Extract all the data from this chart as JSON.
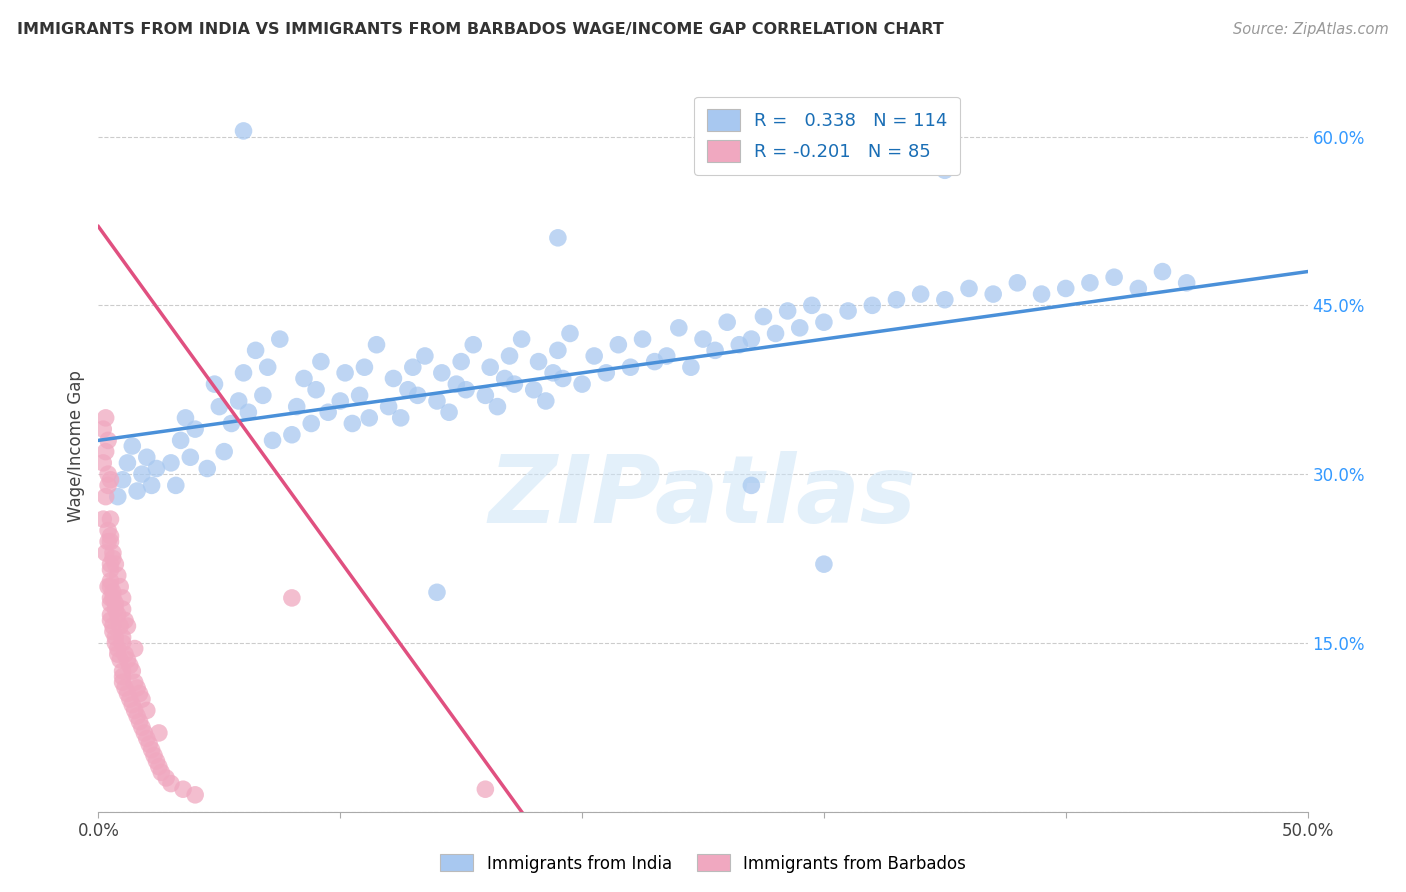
{
  "title": "IMMIGRANTS FROM INDIA VS IMMIGRANTS FROM BARBADOS WAGE/INCOME GAP CORRELATION CHART",
  "source": "Source: ZipAtlas.com",
  "ylabel": "Wage/Income Gap",
  "xlim": [
    0.0,
    0.5
  ],
  "ylim": [
    0.0,
    0.65
  ],
  "x_tick_positions": [
    0.0,
    0.1,
    0.2,
    0.3,
    0.4,
    0.5
  ],
  "x_tick_labels": [
    "0.0%",
    "",
    "",
    "",
    "",
    "50.0%"
  ],
  "y_tick_positions": [
    0.0,
    0.15,
    0.3,
    0.45,
    0.6
  ],
  "y_tick_labels_right": [
    "",
    "15.0%",
    "30.0%",
    "45.0%",
    "60.0%"
  ],
  "india_R": 0.338,
  "india_N": 114,
  "barbados_R": -0.201,
  "barbados_N": 85,
  "india_color": "#a8c8f0",
  "barbados_color": "#f0a8c0",
  "india_line_color": "#4a90d9",
  "barbados_line_color": "#e05080",
  "watermark": "ZIPatlas",
  "legend_label_india": "Immigrants from India",
  "legend_label_barbados": "Immigrants from Barbados",
  "india_x": [
    0.008,
    0.01,
    0.012,
    0.014,
    0.016,
    0.018,
    0.02,
    0.022,
    0.024,
    0.03,
    0.032,
    0.034,
    0.036,
    0.038,
    0.04,
    0.045,
    0.048,
    0.05,
    0.052,
    0.055,
    0.058,
    0.06,
    0.062,
    0.065,
    0.068,
    0.07,
    0.072,
    0.075,
    0.08,
    0.082,
    0.085,
    0.088,
    0.09,
    0.092,
    0.095,
    0.1,
    0.102,
    0.105,
    0.108,
    0.11,
    0.112,
    0.115,
    0.12,
    0.122,
    0.125,
    0.128,
    0.13,
    0.132,
    0.135,
    0.14,
    0.142,
    0.145,
    0.148,
    0.15,
    0.152,
    0.155,
    0.16,
    0.162,
    0.165,
    0.168,
    0.17,
    0.172,
    0.175,
    0.18,
    0.182,
    0.185,
    0.188,
    0.19,
    0.192,
    0.195,
    0.2,
    0.205,
    0.21,
    0.215,
    0.22,
    0.225,
    0.23,
    0.235,
    0.24,
    0.245,
    0.25,
    0.255,
    0.26,
    0.265,
    0.27,
    0.275,
    0.28,
    0.285,
    0.29,
    0.295,
    0.3,
    0.31,
    0.32,
    0.33,
    0.34,
    0.35,
    0.36,
    0.37,
    0.38,
    0.39,
    0.4,
    0.41,
    0.42,
    0.43,
    0.44,
    0.45,
    0.35,
    0.27,
    0.14,
    0.06,
    0.19,
    0.3
  ],
  "india_y": [
    0.28,
    0.295,
    0.31,
    0.325,
    0.285,
    0.3,
    0.315,
    0.29,
    0.305,
    0.31,
    0.29,
    0.33,
    0.35,
    0.315,
    0.34,
    0.305,
    0.38,
    0.36,
    0.32,
    0.345,
    0.365,
    0.39,
    0.355,
    0.41,
    0.37,
    0.395,
    0.33,
    0.42,
    0.335,
    0.36,
    0.385,
    0.345,
    0.375,
    0.4,
    0.355,
    0.365,
    0.39,
    0.345,
    0.37,
    0.395,
    0.35,
    0.415,
    0.36,
    0.385,
    0.35,
    0.375,
    0.395,
    0.37,
    0.405,
    0.365,
    0.39,
    0.355,
    0.38,
    0.4,
    0.375,
    0.415,
    0.37,
    0.395,
    0.36,
    0.385,
    0.405,
    0.38,
    0.42,
    0.375,
    0.4,
    0.365,
    0.39,
    0.41,
    0.385,
    0.425,
    0.38,
    0.405,
    0.39,
    0.415,
    0.395,
    0.42,
    0.4,
    0.405,
    0.43,
    0.395,
    0.42,
    0.41,
    0.435,
    0.415,
    0.42,
    0.44,
    0.425,
    0.445,
    0.43,
    0.45,
    0.435,
    0.445,
    0.45,
    0.455,
    0.46,
    0.455,
    0.465,
    0.46,
    0.47,
    0.46,
    0.465,
    0.47,
    0.475,
    0.465,
    0.48,
    0.47,
    0.57,
    0.29,
    0.195,
    0.605,
    0.51,
    0.22
  ],
  "barbados_x": [
    0.002,
    0.002,
    0.002,
    0.003,
    0.003,
    0.003,
    0.003,
    0.004,
    0.004,
    0.004,
    0.004,
    0.004,
    0.004,
    0.005,
    0.005,
    0.005,
    0.005,
    0.005,
    0.005,
    0.005,
    0.005,
    0.005,
    0.005,
    0.005,
    0.005,
    0.006,
    0.006,
    0.006,
    0.006,
    0.006,
    0.006,
    0.007,
    0.007,
    0.007,
    0.007,
    0.007,
    0.008,
    0.008,
    0.008,
    0.008,
    0.009,
    0.009,
    0.009,
    0.01,
    0.01,
    0.01,
    0.01,
    0.01,
    0.01,
    0.01,
    0.011,
    0.011,
    0.011,
    0.012,
    0.012,
    0.012,
    0.013,
    0.013,
    0.014,
    0.014,
    0.015,
    0.015,
    0.015,
    0.016,
    0.016,
    0.017,
    0.017,
    0.018,
    0.018,
    0.019,
    0.02,
    0.02,
    0.021,
    0.022,
    0.023,
    0.024,
    0.025,
    0.025,
    0.026,
    0.028,
    0.03,
    0.035,
    0.04,
    0.08,
    0.16
  ],
  "barbados_y": [
    0.26,
    0.31,
    0.34,
    0.23,
    0.28,
    0.32,
    0.35,
    0.24,
    0.29,
    0.33,
    0.2,
    0.25,
    0.3,
    0.19,
    0.22,
    0.26,
    0.295,
    0.185,
    0.215,
    0.245,
    0.175,
    0.205,
    0.24,
    0.17,
    0.2,
    0.165,
    0.195,
    0.23,
    0.16,
    0.19,
    0.225,
    0.155,
    0.185,
    0.22,
    0.15,
    0.18,
    0.145,
    0.175,
    0.21,
    0.14,
    0.135,
    0.165,
    0.2,
    0.125,
    0.155,
    0.19,
    0.12,
    0.15,
    0.18,
    0.115,
    0.11,
    0.14,
    0.17,
    0.105,
    0.135,
    0.165,
    0.1,
    0.13,
    0.095,
    0.125,
    0.09,
    0.115,
    0.145,
    0.085,
    0.11,
    0.08,
    0.105,
    0.075,
    0.1,
    0.07,
    0.065,
    0.09,
    0.06,
    0.055,
    0.05,
    0.045,
    0.04,
    0.07,
    0.035,
    0.03,
    0.025,
    0.02,
    0.015,
    0.19,
    0.02
  ],
  "barbados_line_x": [
    0.0,
    0.175
  ],
  "barbados_line_y": [
    0.52,
    0.0
  ]
}
